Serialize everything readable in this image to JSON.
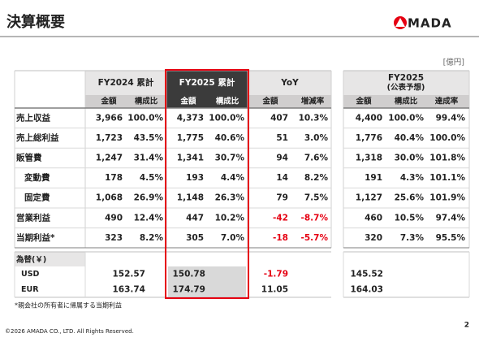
{
  "header": {
    "title": "決算概要",
    "logo": "MADA"
  },
  "unit": "[億円]",
  "table": {
    "groups": [
      "FY2024 累計",
      "FY2025 累計",
      "YoY"
    ],
    "columns": [
      "金額",
      "構成比",
      "金額",
      "構成比",
      "金額",
      "増減率"
    ],
    "rows": [
      {
        "label": "売上収益",
        "cells": [
          "3,966",
          "100.0%",
          "4,373",
          "100.0%",
          "407",
          "10.3%"
        ]
      },
      {
        "label": "売上総利益",
        "cells": [
          "1,723",
          "43.5%",
          "1,775",
          "40.6%",
          "51",
          "3.0%"
        ]
      },
      {
        "label": "販管費",
        "cells": [
          "1,247",
          "31.4%",
          "1,341",
          "30.7%",
          "94",
          "7.6%"
        ]
      },
      {
        "label": "変動費",
        "cells": [
          "178",
          "4.5%",
          "193",
          "4.4%",
          "14",
          "8.2%"
        ]
      },
      {
        "label": "固定費",
        "cells": [
          "1,068",
          "26.9%",
          "1,148",
          "26.3%",
          "79",
          "7.5%"
        ]
      },
      {
        "label": "営業利益",
        "cells": [
          "490",
          "12.4%",
          "447",
          "10.2%",
          "-42",
          "-8.7%"
        ]
      },
      {
        "label": "当期利益*",
        "cells": [
          "323",
          "8.2%",
          "305",
          "7.0%",
          "-18",
          "-5.7%"
        ]
      }
    ]
  },
  "forecast": {
    "title": [
      "FY2025",
      "(公表予想)"
    ],
    "columns": [
      "金額",
      "構成比",
      "達成率"
    ],
    "rows": [
      [
        "4,400",
        "100.0%",
        "99.4%"
      ],
      [
        "1,776",
        "40.4%",
        "100.0%"
      ],
      [
        "1,318",
        "30.0%",
        "101.8%"
      ],
      [
        "191",
        "4.3%",
        "101.1%"
      ],
      [
        "1,127",
        "25.6%",
        "101.9%"
      ],
      [
        "460",
        "10.5%",
        "97.4%"
      ],
      [
        "320",
        "7.3%",
        "95.5%"
      ]
    ]
  },
  "fx": {
    "title": "為替(￥)",
    "rows": [
      {
        "label": "USD",
        "values": [
          "152.57",
          "150.78",
          "-1.79",
          "145.52"
        ]
      },
      {
        "label": "EUR",
        "values": [
          "163.74",
          "174.79",
          "11.05",
          "164.03"
        ]
      }
    ]
  },
  "footnote": "*親会社の所有者に帰属する当期利益",
  "copyright": "©2026 AMADA CO., LTD. All Rights Reserved.",
  "page": "2"
}
